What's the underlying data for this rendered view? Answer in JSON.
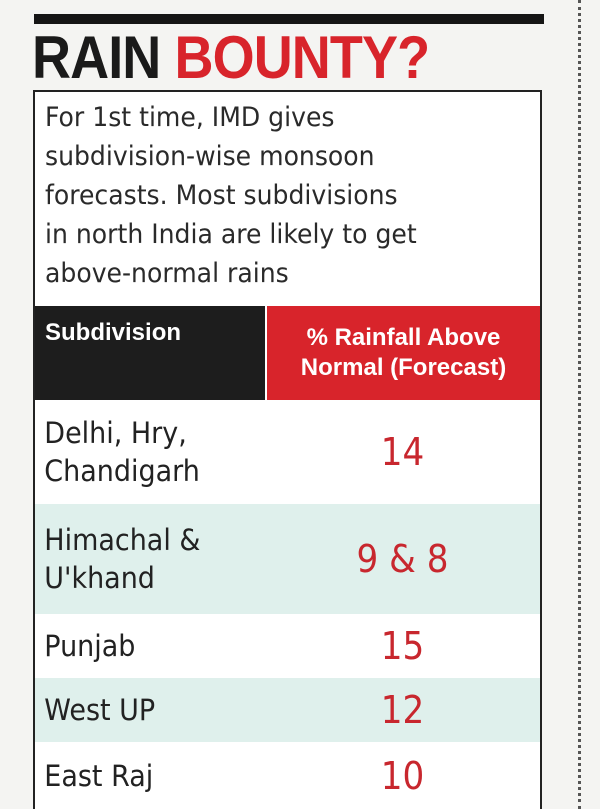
{
  "title": {
    "part1": "RAIN",
    "part2": "BOUNTY?"
  },
  "intro_lines": [
    "For 1st time, IMD gives",
    "subdivision-wise monsoon",
    "forecasts. Most subdivisions",
    "in north India are likely to get",
    "above-normal rains"
  ],
  "colors": {
    "accent": "#d8242b",
    "header_dark": "#1d1d1d",
    "row_alt": "#dff0ec"
  },
  "chart_data": {
    "type": "table",
    "columns": [
      "Subdivision",
      "% Rainfall Above Normal (Forecast)"
    ],
    "header_lines": [
      "% Rainfall Above",
      "Normal (Forecast)"
    ],
    "rows": [
      {
        "subdivision_lines": [
          "Delhi, Hry,",
          "Chandigarh"
        ],
        "value": "14"
      },
      {
        "subdivision_lines": [
          "Himachal &",
          "U'khand"
        ],
        "value": "9 & 8"
      },
      {
        "subdivision_lines": [
          "Punjab"
        ],
        "value": "15"
      },
      {
        "subdivision_lines": [
          "West UP"
        ],
        "value": "12"
      },
      {
        "subdivision_lines": [
          "East Raj"
        ],
        "value": "10"
      }
    ]
  }
}
